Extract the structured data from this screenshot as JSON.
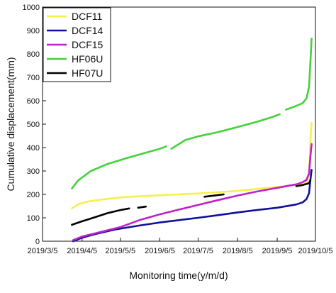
{
  "chart_data": {
    "type": "line",
    "title": "",
    "xlabel": "Monitoring time(y/m/d)",
    "ylabel": "Cumulative displacement(mm)",
    "xlim": [
      "2019-03-05",
      "2019-10-05"
    ],
    "ylim": [
      0,
      1000
    ],
    "x_ticks": [
      "2019/3/5",
      "2019/4/5",
      "2019/5/5",
      "2019/6/5",
      "2019/7/5",
      "2019/8/5",
      "2019/9/5",
      "2019/10/5"
    ],
    "y_ticks": [
      0,
      100,
      200,
      300,
      400,
      500,
      600,
      700,
      800,
      900,
      1000
    ],
    "grid": false,
    "legend": "top-left",
    "series": [
      {
        "name": "DCF11",
        "color": "#f5f04a",
        "segments": [
          [
            [
              "2019-03-28",
              140
            ],
            [
              "2019-04-02",
              158
            ],
            [
              "2019-04-10",
              170
            ],
            [
              "2019-04-20",
              178
            ],
            [
              "2019-05-05",
              187
            ],
            [
              "2019-05-20",
              192
            ],
            [
              "2019-06-05",
              196
            ],
            [
              "2019-06-20",
              200
            ],
            [
              "2019-07-05",
              204
            ],
            [
              "2019-07-20",
              209
            ],
            [
              "2019-08-05",
              215
            ],
            [
              "2019-08-20",
              223
            ],
            [
              "2019-09-05",
              232
            ],
            [
              "2019-09-15",
              238
            ],
            [
              "2019-09-25",
              242
            ],
            [
              "2019-09-28",
              250
            ],
            [
              "2019-09-30",
              285
            ],
            [
              "2019-10-01",
              420
            ],
            [
              "2019-10-02",
              505
            ]
          ]
        ]
      },
      {
        "name": "DCF14",
        "color": "#10109a",
        "segments": [
          [
            [
              "2019-03-29",
              0
            ],
            [
              "2019-04-05",
              15
            ],
            [
              "2019-04-15",
              30
            ],
            [
              "2019-05-01",
              50
            ],
            [
              "2019-05-20",
              67
            ],
            [
              "2019-06-05",
              80
            ],
            [
              "2019-06-20",
              90
            ],
            [
              "2019-07-05",
              100
            ],
            [
              "2019-07-20",
              111
            ],
            [
              "2019-08-05",
              123
            ],
            [
              "2019-08-20",
              133
            ],
            [
              "2019-09-05",
              143
            ],
            [
              "2019-09-20",
              157
            ],
            [
              "2019-09-25",
              166
            ],
            [
              "2019-09-28",
              180
            ],
            [
              "2019-09-30",
              205
            ],
            [
              "2019-10-01",
              260
            ],
            [
              "2019-10-02",
              305
            ]
          ]
        ]
      },
      {
        "name": "DCF15",
        "color": "#c020c8",
        "segments": [
          [
            [
              "2019-03-29",
              5
            ],
            [
              "2019-04-05",
              20
            ],
            [
              "2019-04-20",
              40
            ],
            [
              "2019-05-05",
              60
            ],
            [
              "2019-05-20",
              90
            ],
            [
              "2019-06-05",
              115
            ],
            [
              "2019-06-20",
              135
            ],
            [
              "2019-07-05",
              155
            ],
            [
              "2019-07-20",
              175
            ],
            [
              "2019-08-05",
              195
            ],
            [
              "2019-08-20",
              212
            ],
            [
              "2019-09-05",
              228
            ],
            [
              "2019-09-20",
              243
            ],
            [
              "2019-09-25",
              252
            ],
            [
              "2019-09-28",
              262
            ],
            [
              "2019-09-30",
              290
            ],
            [
              "2019-10-01",
              360
            ],
            [
              "2019-10-02",
              415
            ]
          ]
        ]
      },
      {
        "name": "HF06U",
        "color": "#44d13a",
        "segments": [
          [
            [
              "2019-03-28",
              225
            ],
            [
              "2019-04-02",
              260
            ],
            [
              "2019-04-12",
              300
            ],
            [
              "2019-04-25",
              330
            ],
            [
              "2019-05-10",
              355
            ],
            [
              "2019-05-25",
              378
            ],
            [
              "2019-06-05",
              395
            ],
            [
              "2019-06-10",
              405
            ]
          ],
          [
            [
              "2019-06-14",
              395
            ],
            [
              "2019-06-25",
              432
            ],
            [
              "2019-07-05",
              448
            ],
            [
              "2019-07-20",
              465
            ],
            [
              "2019-08-05",
              488
            ],
            [
              "2019-08-20",
              510
            ],
            [
              "2019-09-01",
              530
            ],
            [
              "2019-09-07",
              542
            ]
          ],
          [
            [
              "2019-09-12",
              562
            ],
            [
              "2019-09-20",
              578
            ],
            [
              "2019-09-25",
              590
            ],
            [
              "2019-09-28",
              610
            ],
            [
              "2019-09-30",
              660
            ],
            [
              "2019-10-01",
              760
            ],
            [
              "2019-10-02",
              865
            ]
          ]
        ]
      },
      {
        "name": "HF07U",
        "color": "#000000",
        "segments": [
          [
            [
              "2019-03-28",
              70
            ],
            [
              "2019-04-05",
              85
            ],
            [
              "2019-04-15",
              102
            ],
            [
              "2019-04-25",
              120
            ],
            [
              "2019-05-05",
              133
            ],
            [
              "2019-05-12",
              140
            ]
          ],
          [
            [
              "2019-05-19",
              143
            ],
            [
              "2019-05-25",
              148
            ]
          ],
          [
            [
              "2019-07-10",
              190
            ],
            [
              "2019-07-18",
              195
            ],
            [
              "2019-07-25",
              200
            ]
          ],
          [
            [
              "2019-09-20",
              235
            ],
            [
              "2019-09-25",
              240
            ],
            [
              "2019-09-30",
              248
            ],
            [
              "2019-10-01",
              260
            ]
          ]
        ]
      }
    ]
  }
}
